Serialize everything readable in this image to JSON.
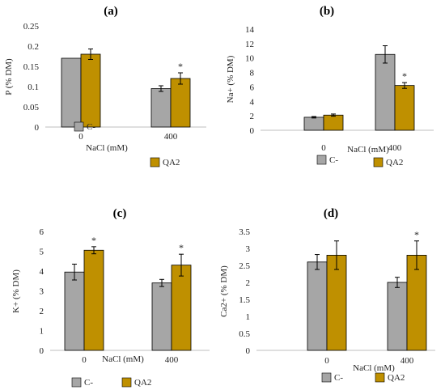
{
  "chart_data": [
    {
      "type": "bar",
      "panel": "(a)",
      "categories": [
        "0",
        "400"
      ],
      "xlabel": "NaCl (mM)",
      "ylabel": "P (% DM)",
      "ylim": [
        0,
        0.25
      ],
      "yticks": [
        "0",
        "0.05",
        "0.1",
        "0.15",
        "0.2",
        "0.25"
      ],
      "series": [
        {
          "name": "C-",
          "values": [
            0.17,
            0.095
          ],
          "errors": [
            0,
            0.007
          ],
          "color": "#a6a6a6"
        },
        {
          "name": "QA2",
          "values": [
            0.18,
            0.12
          ],
          "errors": [
            0.013,
            0.014
          ],
          "color": "#bf9000"
        }
      ],
      "annotations": [
        {
          "series": "QA2",
          "category": "400",
          "text": "*"
        }
      ],
      "legend": "bottom"
    },
    {
      "type": "bar",
      "panel": "(b)",
      "categories": [
        "0",
        "400"
      ],
      "xlabel": "NaCl (mM)",
      "ylabel": "Na+ (% DM)",
      "ylim": [
        0,
        14
      ],
      "yticks": [
        "0",
        "2",
        "4",
        "6",
        "8",
        "10",
        "12",
        "14"
      ],
      "series": [
        {
          "name": "C-",
          "values": [
            1.8,
            10.5
          ],
          "errors": [
            0.1,
            1.2
          ],
          "color": "#a6a6a6"
        },
        {
          "name": "QA2",
          "values": [
            2.1,
            6.2
          ],
          "errors": [
            0.15,
            0.4
          ],
          "color": "#bf9000"
        }
      ],
      "annotations": [
        {
          "series": "QA2",
          "category": "400",
          "text": "*"
        }
      ],
      "legend": "bottom"
    },
    {
      "type": "bar",
      "panel": "(c)",
      "categories": [
        "0",
        "400"
      ],
      "xlabel": "NaCl (mM)",
      "ylabel": "K+ (% DM)",
      "ylim": [
        0,
        6
      ],
      "yticks": [
        "0",
        "1",
        "2",
        "3",
        "4",
        "5",
        "6"
      ],
      "series": [
        {
          "name": "C-",
          "values": [
            3.95,
            3.4
          ],
          "errors": [
            0.4,
            0.18
          ],
          "color": "#a6a6a6"
        },
        {
          "name": "QA2",
          "values": [
            5.05,
            4.3
          ],
          "errors": [
            0.18,
            0.55
          ],
          "color": "#bf9000"
        }
      ],
      "annotations": [
        {
          "series": "QA2",
          "category": "0",
          "text": "*"
        },
        {
          "series": "QA2",
          "category": "400",
          "text": "*"
        }
      ],
      "legend": "bottom"
    },
    {
      "type": "bar",
      "panel": "(d)",
      "categories": [
        "0",
        "400"
      ],
      "xlabel": "NaCl (mM)",
      "ylabel": "Ca2+ (% DM)",
      "ylim": [
        0,
        3.5
      ],
      "yticks": [
        "0",
        "0.5",
        "1",
        "1.5",
        "2",
        "2.5",
        "3",
        "3.5"
      ],
      "series": [
        {
          "name": "C-",
          "values": [
            2.6,
            2.0
          ],
          "errors": [
            0.22,
            0.15
          ],
          "color": "#a6a6a6"
        },
        {
          "name": "QA2",
          "values": [
            2.8,
            2.8
          ],
          "errors": [
            0.42,
            0.42
          ],
          "color": "#bf9000"
        }
      ],
      "annotations": [
        {
          "series": "QA2",
          "category": "400",
          "text": "*"
        }
      ],
      "legend": "bottom"
    }
  ]
}
